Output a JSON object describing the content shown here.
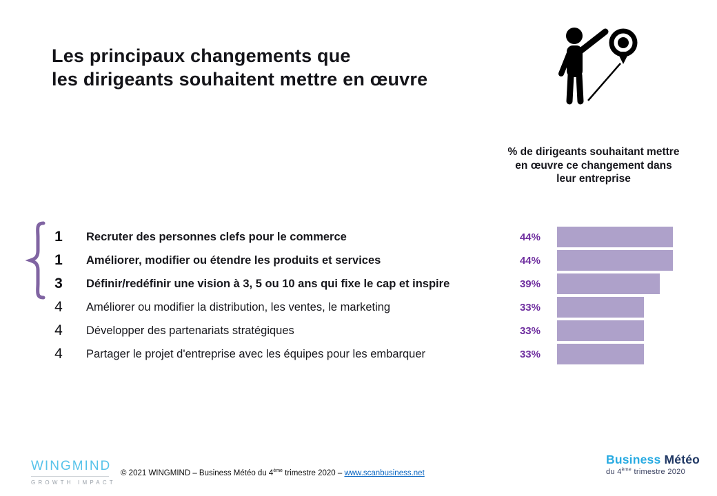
{
  "title": {
    "lines": [
      "Les principaux changements que",
      "les dirigeants souhaitent mettre en œuvre"
    ]
  },
  "icons": {
    "hero": "person-pointing-at-location-pin-icon",
    "brace": "curly-brace-left"
  },
  "chart_header": {
    "lines": [
      "% de dirigeants souhaitant mettre",
      "en œuvre ce changement dans",
      "leur entreprise"
    ]
  },
  "chart_data": {
    "type": "bar",
    "orientation": "horizontal",
    "title": "% de dirigeants souhaitant mettre en œuvre ce changement dans leur entreprise",
    "categories": [
      "Recruter des personnes clefs pour le commerce",
      "Améliorer, modifier ou étendre les produits et services",
      "Définir/redéfinir une vision à 3, 5 ou 10 ans qui fixe le cap et inspire",
      "Améliorer ou modifier la distribution, les ventes, le marketing",
      "Développer des partenariats stratégiques",
      "Partager le projet d'entreprise avec les équipes pour les embarquer"
    ],
    "ranks": [
      "1",
      "1",
      "3",
      "4",
      "4",
      "4"
    ],
    "values": [
      44,
      44,
      39,
      33,
      33,
      33
    ],
    "value_labels": [
      "44%",
      "44%",
      "39%",
      "33%",
      "33%",
      "33%"
    ],
    "unit": "%",
    "axis_hidden": true,
    "legend": "none",
    "bar_color": "#aea1ca",
    "value_label_color": "#7030a0"
  },
  "footer": {
    "wingmind": {
      "name": "WINGMIND",
      "tagline": "GROWTH IMPACT"
    },
    "copyright": {
      "prefix": "© 2021 WINGMIND – Business Météo du 4",
      "sup": "ème",
      "middle": " trimestre 2020 – ",
      "link": "www.scanbusiness.net"
    },
    "business_meteo": {
      "brand_part1": "Business",
      "brand_part2": " Météo",
      "sub_prefix": "du 4",
      "sub_sup": "ème",
      "sub_suffix": " trimestre 2020"
    }
  },
  "colors": {
    "accent_purple": "#7030a0",
    "bar_purple": "#aea1ca",
    "brace_purple": "#8064a2",
    "logo_blue": "#57c3ea",
    "brand_blue": "#29abe2",
    "brand_navy": "#203864",
    "link_blue": "#0563c1"
  }
}
